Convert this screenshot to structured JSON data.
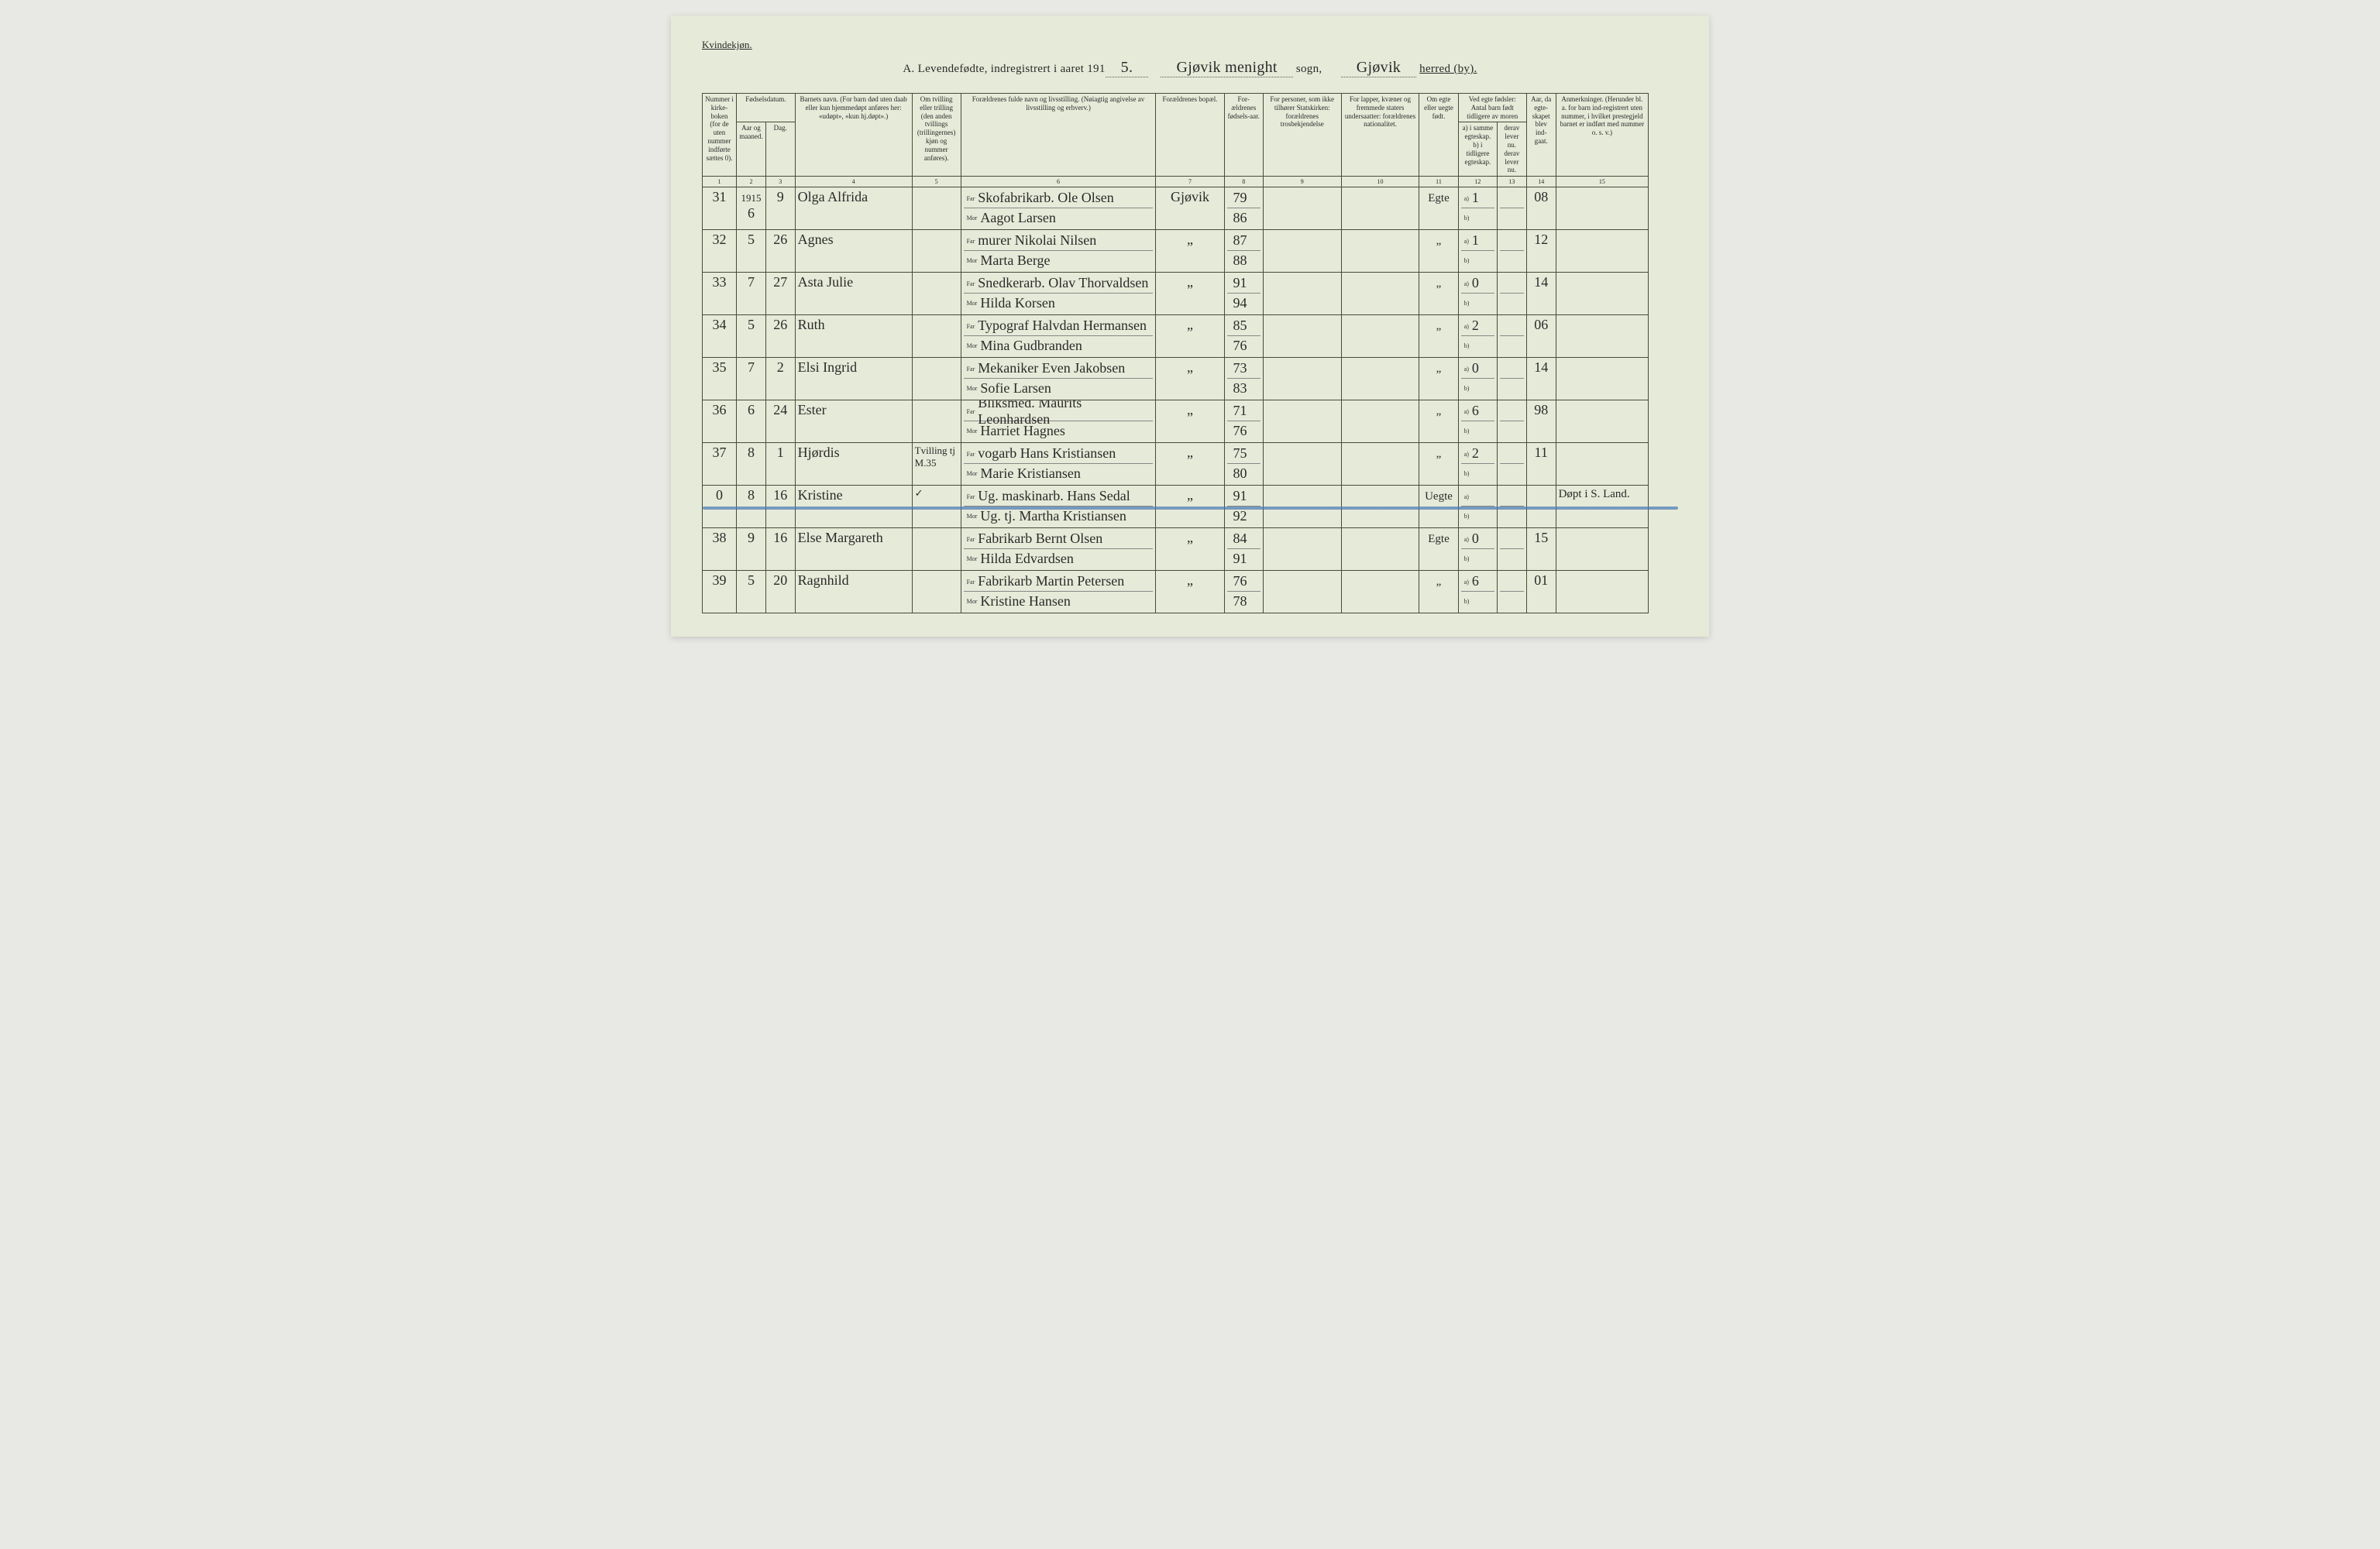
{
  "page": {
    "gender_label": "Kvindekjøn.",
    "title_prefix": "A.  Levendefødte, indregistrert i aaret 191",
    "title_year_suffix": "5.",
    "sogn_handwritten": "Gjøvik menight",
    "sogn_label": "sogn,",
    "herred_handwritten": "Gjøvik",
    "herred_label": "herred (by)."
  },
  "colwidths": [
    "3.5%",
    "3%",
    "3%",
    "12%",
    "5%",
    "20%",
    "7%",
    "4%",
    "8%",
    "8%",
    "4%",
    "4%",
    "3%",
    "3%",
    "9.5%"
  ],
  "headers": {
    "c1": "Nummer i kirke-boken (for de uten nummer indførte sættes 0).",
    "c2_group": "Fødselsdatum.",
    "c2": "Aar og maaned.",
    "c3": "Dag.",
    "c4": "Barnets navn.\n(For barn død uten daab eller kun hjemmedøpt anføres her: «udøpt», «kun hj.døpt».)",
    "c5": "Om tvilling eller trilling (den anden tvillings (trillingernes) kjøn og nummer anføres).",
    "c6": "Forældrenes fulde navn og livsstilling.\n(Nøiagtig angivelse av livsstilling og erhverv.)",
    "c7": "Forældrenes bopæl.",
    "c8": "For-ældrenes fødsels-aar.",
    "c9": "For personer, som ikke tilhører Statskirken: forældrenes trosbekjendelse",
    "c10": "For lapper, kvæner og fremmede staters undersaatter: forældrenes nationalitet.",
    "c11": "Om egte eller uegte født.",
    "c12_group": "Ved egte fødsler: Antal barn født tidligere av moren",
    "c12": "a) i samme egteskap.\nb) i tidligere egteskap.",
    "c13": "derav lever nu.\nderav lever nu.",
    "c14": "Aar, da egte-skapet blev ind-gaat.",
    "c15": "Anmerkninger.\n(Herunder bl. a. for barn ind-registrert uten nummer, i hvilket prestegjeld barnet er indført med nummer o. s. v.)"
  },
  "colnums": [
    "1",
    "2",
    "3",
    "4",
    "5",
    "6",
    "7",
    "8",
    "9",
    "10",
    "11",
    "12",
    "13",
    "14",
    "15"
  ],
  "year_above": "1915",
  "rows": [
    {
      "num": "31",
      "month": "6",
      "day": "9",
      "name": "Olga Alfrida",
      "twin": "",
      "far": "Skofabrikarb. Ole Olsen",
      "mor": "Aagot Larsen",
      "bopel": "Gjøvik",
      "far_aar": "79",
      "mor_aar": "86",
      "c9": "",
      "c10": "",
      "egte": "Egte",
      "a": "1",
      "b": "",
      "a2": "",
      "b2": "",
      "c14": "08",
      "c15": ""
    },
    {
      "num": "32",
      "month": "5",
      "day": "26",
      "name": "Agnes",
      "twin": "",
      "far": "murer Nikolai Nilsen",
      "mor": "Marta Berge",
      "bopel": "„",
      "far_aar": "87",
      "mor_aar": "88",
      "c9": "",
      "c10": "",
      "egte": "„",
      "a": "1",
      "b": "",
      "a2": "",
      "b2": "",
      "c14": "12",
      "c15": ""
    },
    {
      "num": "33",
      "month": "7",
      "day": "27",
      "name": "Asta Julie",
      "twin": "",
      "far": "Snedkerarb. Olav Thorvaldsen",
      "mor": "Hilda Korsen",
      "bopel": "„",
      "far_aar": "91",
      "mor_aar": "94",
      "c9": "",
      "c10": "",
      "egte": "„",
      "a": "0",
      "b": "",
      "a2": "",
      "b2": "",
      "c14": "14",
      "c15": ""
    },
    {
      "num": "34",
      "month": "5",
      "day": "26",
      "name": "Ruth",
      "twin": "",
      "far": "Typograf Halvdan Hermansen",
      "mor": "Mina Gudbranden",
      "bopel": "„",
      "far_aar": "85",
      "mor_aar": "76",
      "c9": "",
      "c10": "",
      "egte": "„",
      "a": "2",
      "b": "",
      "a2": "",
      "b2": "",
      "c14": "06",
      "c15": ""
    },
    {
      "num": "35",
      "month": "7",
      "day": "2",
      "name": "Elsi Ingrid",
      "twin": "",
      "far": "Mekaniker Even Jakobsen",
      "mor": "Sofie Larsen",
      "bopel": "„",
      "far_aar": "73",
      "mor_aar": "83",
      "c9": "",
      "c10": "",
      "egte": "„",
      "a": "0",
      "b": "",
      "a2": "",
      "b2": "",
      "c14": "14",
      "c15": ""
    },
    {
      "num": "36",
      "month": "6",
      "day": "24",
      "name": "Ester",
      "twin": "",
      "far": "Bliksmed. Maurits Leonhardsen",
      "mor": "Harriet Hagnes",
      "bopel": "„",
      "far_aar": "71",
      "mor_aar": "76",
      "c9": "",
      "c10": "",
      "egte": "„",
      "a": "6",
      "b": "",
      "a2": "",
      "b2": "",
      "c14": "98",
      "c15": ""
    },
    {
      "num": "37",
      "month": "8",
      "day": "1",
      "name": "Hjørdis",
      "twin": "Tvilling tj M.35",
      "far": "vogarb Hans Kristiansen",
      "mor": "Marie Kristiansen",
      "bopel": "„",
      "far_aar": "75",
      "mor_aar": "80",
      "c9": "",
      "c10": "",
      "egte": "„",
      "a": "2",
      "b": "",
      "a2": "",
      "b2": "",
      "c14": "11",
      "c15": ""
    },
    {
      "num": "0",
      "month": "8",
      "day": "16",
      "name": "Kristine",
      "twin": "✓",
      "far": "Ug. maskinarb. Hans Sedal",
      "mor": "Ug. tj. Martha Kristiansen",
      "bopel": "„",
      "far_aar": "91",
      "mor_aar": "92",
      "c9": "",
      "c10": "",
      "egte": "Uegte",
      "a": "",
      "b": "",
      "a2": "",
      "b2": "",
      "c14": "",
      "c15": "Døpt i S. Land.",
      "struck": true
    },
    {
      "num": "38",
      "month": "9",
      "day": "16",
      "name": "Else Margareth",
      "twin": "",
      "far": "Fabrikarb Bernt Olsen",
      "mor": "Hilda Edvardsen",
      "bopel": "„",
      "far_aar": "84",
      "mor_aar": "91",
      "c9": "",
      "c10": "",
      "egte": "Egte",
      "a": "0",
      "b": "",
      "a2": "",
      "b2": "",
      "c14": "15",
      "c15": ""
    },
    {
      "num": "39",
      "month": "5",
      "day": "20",
      "name": "Ragnhild",
      "twin": "",
      "far": "Fabrikarb Martin Petersen",
      "mor": "Kristine Hansen",
      "bopel": "„",
      "far_aar": "76",
      "mor_aar": "78",
      "c9": "",
      "c10": "",
      "egte": "„",
      "a": "6",
      "b": "",
      "a2": "",
      "b2": "",
      "c14": "01",
      "c15": ""
    }
  ],
  "labels": {
    "far": "Far",
    "mor": "Mor",
    "a": "a)",
    "b": "b)"
  }
}
